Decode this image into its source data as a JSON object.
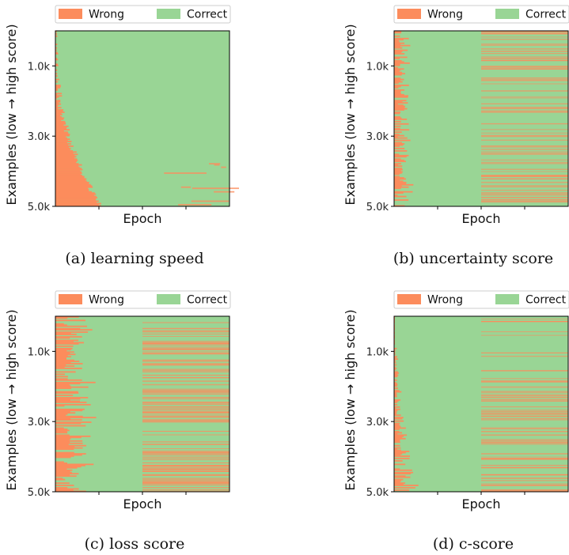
{
  "colors": {
    "wrong": "#fc8c5c",
    "correct": "#99d595",
    "axis": "#000000",
    "legend_border": "#cccccc"
  },
  "chart_data": [
    {
      "type": "heatmap",
      "caption": "(a) learning speed",
      "xlabel": "Epoch",
      "ylabel": "Examples (low → high score)",
      "yticks": [
        "1.0k",
        "3.0k",
        "5.0k"
      ],
      "ytick_values": [
        1000,
        3000,
        5000
      ],
      "legend": [
        "Wrong",
        "Correct"
      ],
      "legend_position": "top",
      "pattern": "speed"
    },
    {
      "type": "heatmap",
      "caption": "(b) uncertainty score",
      "xlabel": "Epoch",
      "ylabel": "Examples (low → high score)",
      "yticks": [
        "1.0k",
        "3.0k",
        "5.0k"
      ],
      "ytick_values": [
        1000,
        3000,
        5000
      ],
      "legend": [
        "Wrong",
        "Correct"
      ],
      "legend_position": "top",
      "pattern": "uncertainty"
    },
    {
      "type": "heatmap",
      "caption": "(c) loss score",
      "xlabel": "Epoch",
      "ylabel": "Examples (low → high score)",
      "yticks": [
        "1.0k",
        "3.0k",
        "5.0k"
      ],
      "ytick_values": [
        1000,
        3000,
        5000
      ],
      "legend": [
        "Wrong",
        "Correct"
      ],
      "legend_position": "top",
      "pattern": "loss"
    },
    {
      "type": "heatmap",
      "caption": "(d) c-score",
      "xlabel": "Epoch",
      "ylabel": "Examples (low → high score)",
      "yticks": [
        "1.0k",
        "3.0k",
        "5.0k"
      ],
      "ytick_values": [
        1000,
        3000,
        5000
      ],
      "legend": [
        "Wrong",
        "Correct"
      ],
      "legend_position": "top",
      "pattern": "cscore"
    }
  ]
}
